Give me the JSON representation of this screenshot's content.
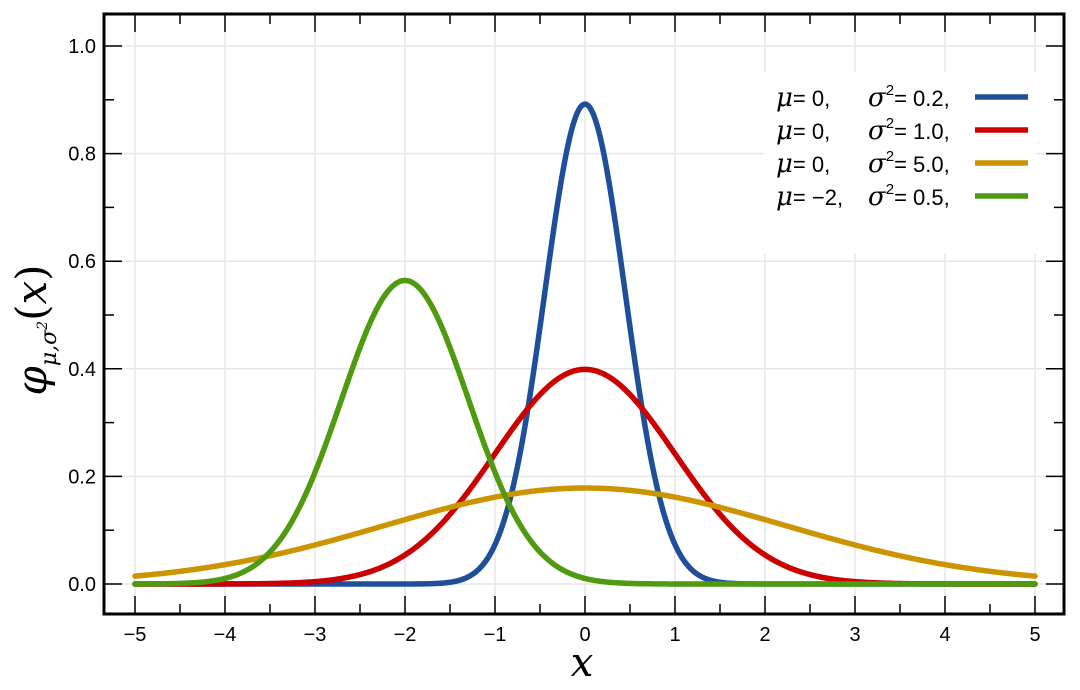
{
  "chart_data": {
    "type": "line",
    "title": "",
    "xlabel": "x",
    "ylabel": "φμ,σ²(x)",
    "ylabel_parts": {
      "symbol": "φ",
      "subscript_mu": "μ",
      "subscript_sep": ",",
      "subscript_sigma": "σ",
      "subscript_power": "2",
      "arg_open": "(",
      "arg": "x",
      "arg_close": ")"
    },
    "xlim": [
      -5.0,
      5.0
    ],
    "ylim": [
      0.0,
      1.0
    ],
    "x_ticks": [
      -5,
      -4,
      -3,
      -2,
      -1,
      0,
      1,
      2,
      3,
      4,
      5
    ],
    "x_tick_labels": [
      "−5",
      "−4",
      "−3",
      "−2",
      "−1",
      "0",
      "1",
      "2",
      "3",
      "4",
      "5"
    ],
    "y_ticks": [
      0.0,
      0.2,
      0.4,
      0.6,
      0.8,
      1.0
    ],
    "y_tick_labels": [
      "0.0",
      "0.2",
      "0.4",
      "0.6",
      "0.8",
      "1.0"
    ],
    "grid": true,
    "legend_position": "top-right",
    "series": [
      {
        "mu": 0,
        "sigma2": 0.2,
        "color": "#1f4e9a",
        "legend_mu": "μ",
        "legend_mu_value": "= 0,",
        "legend_sigma": "σ",
        "legend_sigma_power": "2",
        "legend_sigma_value": "= 0.2,"
      },
      {
        "mu": 0,
        "sigma2": 1.0,
        "color": "#cc0000",
        "legend_mu": "μ",
        "legend_mu_value": "= 0,",
        "legend_sigma": "σ",
        "legend_sigma_power": "2",
        "legend_sigma_value": "= 1.0,"
      },
      {
        "mu": 0,
        "sigma2": 5.0,
        "color": "#cc9400",
        "legend_mu": "μ",
        "legend_mu_value": "= 0,",
        "legend_sigma": "σ",
        "legend_sigma_power": "2",
        "legend_sigma_value": "= 5.0,"
      },
      {
        "mu": -2,
        "sigma2": 0.5,
        "color": "#4f9a0e",
        "legend_mu": "μ",
        "legend_mu_value": "= −2,",
        "legend_sigma": "σ",
        "legend_sigma_power": "2",
        "legend_sigma_value": "= 0.5,"
      }
    ]
  }
}
